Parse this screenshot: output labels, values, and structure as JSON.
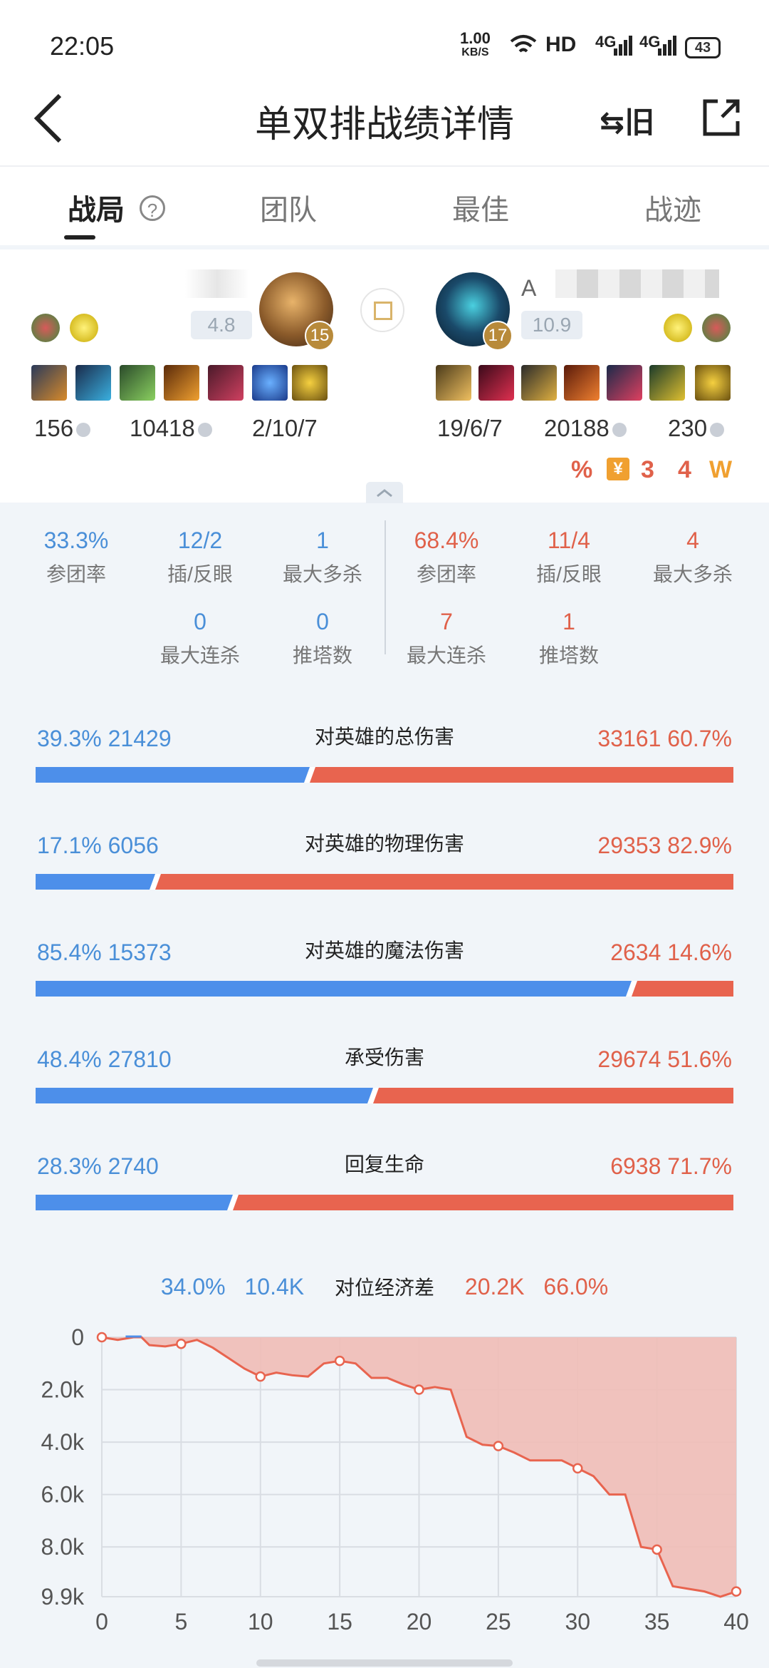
{
  "status_bar": {
    "time": "22:05",
    "net_speed": "1.00",
    "net_unit": "KB/S",
    "hd": "HD",
    "sig1": "4G",
    "sig2": "4G",
    "battery": "43"
  },
  "header": {
    "title": "单双排战绩详情",
    "switch_label": "旧"
  },
  "tabs": [
    {
      "label": "战局",
      "active": true
    },
    {
      "label": "团队",
      "active": false
    },
    {
      "label": "最佳",
      "active": false
    },
    {
      "label": "战迹",
      "active": false
    }
  ],
  "left_player": {
    "score": "4.8",
    "level": "15",
    "cs": "156",
    "gold": "10418",
    "kda": "2/10/7"
  },
  "right_player": {
    "name": "A",
    "score": "10.9",
    "level": "17",
    "cs": "19/6/7",
    "gold": "20188",
    "kda": "230"
  },
  "right_badges": [
    "%",
    "¥",
    "3",
    "4",
    "W"
  ],
  "stats": {
    "left": [
      {
        "value": "33.3%",
        "label": "参团率"
      },
      {
        "value": "12/2",
        "label": "插/反眼"
      },
      {
        "value": "1",
        "label": "最大多杀"
      },
      {
        "value": "0",
        "label": "最大连杀"
      },
      {
        "value": "0",
        "label": "推塔数"
      }
    ],
    "right": [
      {
        "value": "68.4%",
        "label": "参团率"
      },
      {
        "value": "11/4",
        "label": "插/反眼"
      },
      {
        "value": "4",
        "label": "最大多杀"
      },
      {
        "value": "7",
        "label": "最大连杀"
      },
      {
        "value": "1",
        "label": "推塔数"
      }
    ]
  },
  "damage": [
    {
      "title": "对英雄的总伤害",
      "left": "39.3% 21429",
      "right": "33161 60.7%",
      "left_pct": 39.3
    },
    {
      "title": "对英雄的物理伤害",
      "left": "17.1% 6056",
      "right": "29353 82.9%",
      "left_pct": 17.1
    },
    {
      "title": "对英雄的魔法伤害",
      "left": "85.4% 15373",
      "right": "2634 14.6%",
      "left_pct": 85.4
    },
    {
      "title": "承受伤害",
      "left": "48.4% 27810",
      "right": "29674 51.6%",
      "left_pct": 48.4
    },
    {
      "title": "回复生命",
      "left": "28.3% 2740",
      "right": "6938 71.7%",
      "left_pct": 28.3
    }
  ],
  "gold_diff": {
    "title": "对位经济差",
    "left_pct": "34.0%",
    "left_val": "10.4K",
    "right_val": "20.2K",
    "right_pct": "66.0%"
  },
  "chart_data": {
    "type": "area",
    "x_ticks": [
      "0",
      "5",
      "10",
      "15",
      "20",
      "25",
      "30",
      "35",
      "40"
    ],
    "y_ticks": [
      "0",
      "2.0k",
      "4.0k",
      "6.0k",
      "8.0k",
      "9.9k"
    ],
    "xlim": [
      0,
      40
    ],
    "ylim": [
      0,
      9900
    ],
    "y_inverted": true,
    "x": [
      0,
      1,
      2,
      2.5,
      3,
      4,
      5,
      6,
      7,
      8,
      9,
      10,
      11,
      12,
      13,
      14,
      15,
      16,
      17,
      18,
      19,
      20,
      21,
      22,
      23,
      24,
      25,
      26,
      27,
      28,
      29,
      30,
      31,
      32,
      33,
      34,
      35,
      36,
      37,
      38,
      39,
      40
    ],
    "values": [
      0,
      100,
      0,
      0,
      300,
      350,
      250,
      100,
      400,
      800,
      1200,
      1500,
      1350,
      1450,
      1500,
      1000,
      900,
      1000,
      1550,
      1550,
      1800,
      2000,
      1900,
      2000,
      3800,
      4100,
      4150,
      4400,
      4700,
      4700,
      4700,
      5000,
      5300,
      6000,
      6000,
      8000,
      8100,
      9500,
      9600,
      9700,
      9900,
      9700
    ],
    "markers": [
      0,
      5,
      10,
      15,
      20,
      25,
      30,
      35,
      40
    ],
    "grid": true,
    "line_color": "#e8644f",
    "fill_color": "#f0bdb6",
    "positive_color": "#4d8fea"
  }
}
